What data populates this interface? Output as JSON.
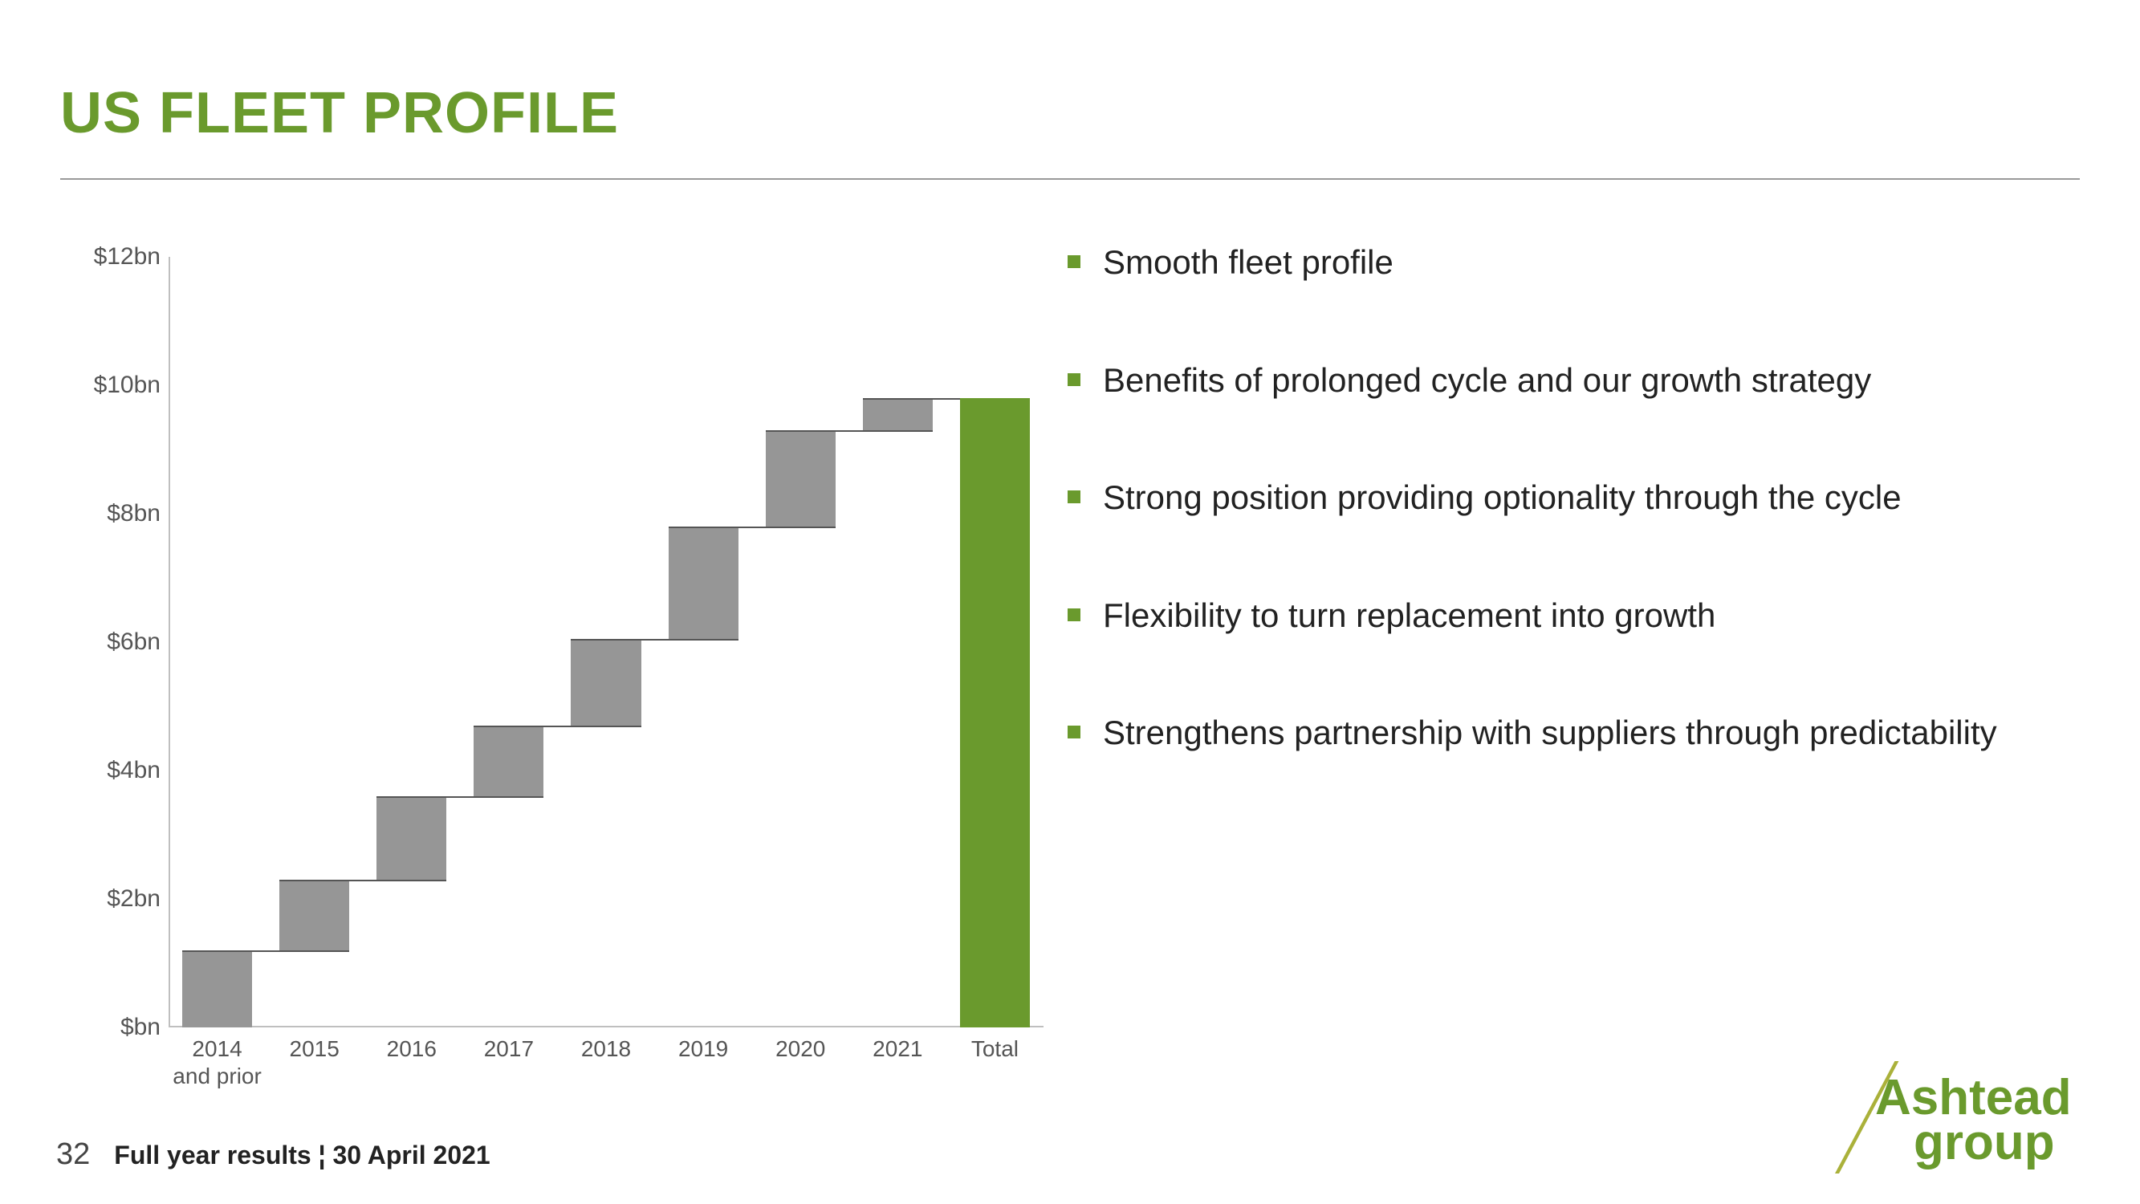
{
  "title": {
    "text": "US FLEET PROFILE",
    "color": "#6a9a2d",
    "fontsize": 72,
    "fontweight": "bold"
  },
  "chart": {
    "type": "waterfall",
    "ylim": [
      0,
      12
    ],
    "ytick_step": 2,
    "ytick_labels": [
      "$bn",
      "$2bn",
      "$4bn",
      "$6bn",
      "$8bn",
      "$10bn",
      "$12bn"
    ],
    "categories": [
      "2014\nand prior",
      "2015",
      "2016",
      "2017",
      "2018",
      "2019",
      "2020",
      "2021",
      "Total"
    ],
    "bars": [
      {
        "start": 0.0,
        "end": 1.2,
        "color": "#969696",
        "is_total": false
      },
      {
        "start": 1.2,
        "end": 2.3,
        "color": "#969696",
        "is_total": false
      },
      {
        "start": 2.3,
        "end": 3.6,
        "color": "#969696",
        "is_total": false
      },
      {
        "start": 3.6,
        "end": 4.7,
        "color": "#969696",
        "is_total": false
      },
      {
        "start": 4.7,
        "end": 6.05,
        "color": "#969696",
        "is_total": false
      },
      {
        "start": 6.05,
        "end": 7.8,
        "color": "#969696",
        "is_total": false
      },
      {
        "start": 7.8,
        "end": 9.3,
        "color": "#969696",
        "is_total": false
      },
      {
        "start": 9.3,
        "end": 9.8,
        "color": "#969696",
        "is_total": false
      },
      {
        "start": 0.0,
        "end": 9.8,
        "color": "#6a9a2d",
        "is_total": true
      }
    ],
    "bar_width": 0.72,
    "axis_color": "#bfbfbf",
    "tick_label_color": "#555555",
    "tick_fontsize": 30,
    "connector_color": "#555555"
  },
  "bullets": {
    "marker_color": "#6a9a2d",
    "text_color": "#222222",
    "fontsize": 42,
    "items": [
      "Smooth fleet profile",
      "Benefits of prolonged cycle and our growth strategy",
      "Strong position providing optionality through the cycle",
      "Flexibility to turn replacement into growth",
      "Strengthens partnership with suppliers through predictability"
    ]
  },
  "footer": {
    "page_number": "32",
    "text": "Full year results ¦ 30 April 2021"
  },
  "logo": {
    "line1": "Ashtead",
    "line2": "group",
    "color": "#6a9a2d",
    "slash_color": "#aab13a"
  }
}
